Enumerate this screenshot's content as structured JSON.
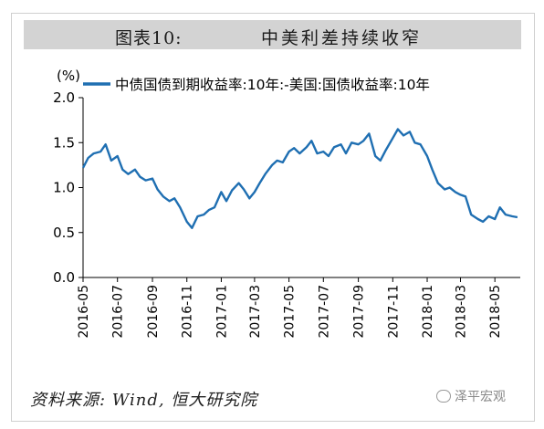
{
  "header": {
    "figure_label": "图表10:",
    "title": "中美利差持续收窄"
  },
  "footer": {
    "source": "资料来源: Wind, 恒大研究院",
    "watermark": "泽平宏观"
  },
  "chart_data": {
    "type": "line",
    "title": "中美利差持续收窄",
    "ylabel": "(%)",
    "ylim": [
      0,
      2.0
    ],
    "yticks": [
      "0.0",
      "0.5",
      "1.0",
      "1.5",
      "2.0"
    ],
    "xlim": [
      "2016-05-01",
      "2018-06-15"
    ],
    "xticks": [
      "2016-05",
      "2016-07",
      "2016-09",
      "2016-11",
      "2017-01",
      "2017-03",
      "2017-05",
      "2017-07",
      "2017-09",
      "2017-11",
      "2018-01",
      "2018-03",
      "2018-05"
    ],
    "grid": false,
    "legend_position": "top",
    "colors": {
      "line": "#1f6fb2",
      "axis": "#000000"
    },
    "series": [
      {
        "name": "中债国债到期收益率:10年:-美国:国债收益率:10年",
        "x": [
          "2016-05-01",
          "2016-05-10",
          "2016-05-20",
          "2016-06-01",
          "2016-06-10",
          "2016-06-20",
          "2016-07-01",
          "2016-07-10",
          "2016-07-20",
          "2016-08-01",
          "2016-08-10",
          "2016-08-20",
          "2016-09-01",
          "2016-09-10",
          "2016-09-20",
          "2016-10-01",
          "2016-10-10",
          "2016-10-20",
          "2016-11-01",
          "2016-11-10",
          "2016-11-20",
          "2016-12-01",
          "2016-12-10",
          "2016-12-20",
          "2017-01-01",
          "2017-01-10",
          "2017-01-20",
          "2017-02-01",
          "2017-02-10",
          "2017-02-20",
          "2017-03-01",
          "2017-03-10",
          "2017-03-20",
          "2017-04-01",
          "2017-04-10",
          "2017-04-20",
          "2017-05-01",
          "2017-05-10",
          "2017-05-20",
          "2017-06-01",
          "2017-06-10",
          "2017-06-20",
          "2017-07-01",
          "2017-07-10",
          "2017-07-20",
          "2017-08-01",
          "2017-08-10",
          "2017-08-20",
          "2017-09-01",
          "2017-09-10",
          "2017-09-20",
          "2017-10-01",
          "2017-10-10",
          "2017-10-20",
          "2017-11-01",
          "2017-11-10",
          "2017-11-20",
          "2017-12-01",
          "2017-12-10",
          "2017-12-20",
          "2018-01-01",
          "2018-01-10",
          "2018-01-20",
          "2018-02-01",
          "2018-02-10",
          "2018-02-20",
          "2018-03-01",
          "2018-03-10",
          "2018-03-20",
          "2018-04-01",
          "2018-04-10",
          "2018-04-20",
          "2018-05-01",
          "2018-05-10",
          "2018-05-20",
          "2018-06-01",
          "2018-06-10"
        ],
        "y": [
          1.22,
          1.33,
          1.38,
          1.4,
          1.48,
          1.3,
          1.35,
          1.2,
          1.15,
          1.2,
          1.12,
          1.08,
          1.1,
          0.98,
          0.9,
          0.85,
          0.88,
          0.78,
          0.62,
          0.55,
          0.68,
          0.7,
          0.75,
          0.78,
          0.95,
          0.85,
          0.97,
          1.05,
          0.98,
          0.88,
          0.95,
          1.05,
          1.15,
          1.25,
          1.3,
          1.28,
          1.4,
          1.44,
          1.38,
          1.45,
          1.52,
          1.38,
          1.4,
          1.35,
          1.45,
          1.48,
          1.38,
          1.5,
          1.48,
          1.52,
          1.6,
          1.35,
          1.3,
          1.42,
          1.55,
          1.65,
          1.58,
          1.62,
          1.5,
          1.48,
          1.35,
          1.2,
          1.05,
          0.98,
          1.0,
          0.95,
          0.92,
          0.9,
          0.7,
          0.65,
          0.62,
          0.68,
          0.65,
          0.78,
          0.7,
          0.68,
          0.67
        ]
      }
    ]
  }
}
